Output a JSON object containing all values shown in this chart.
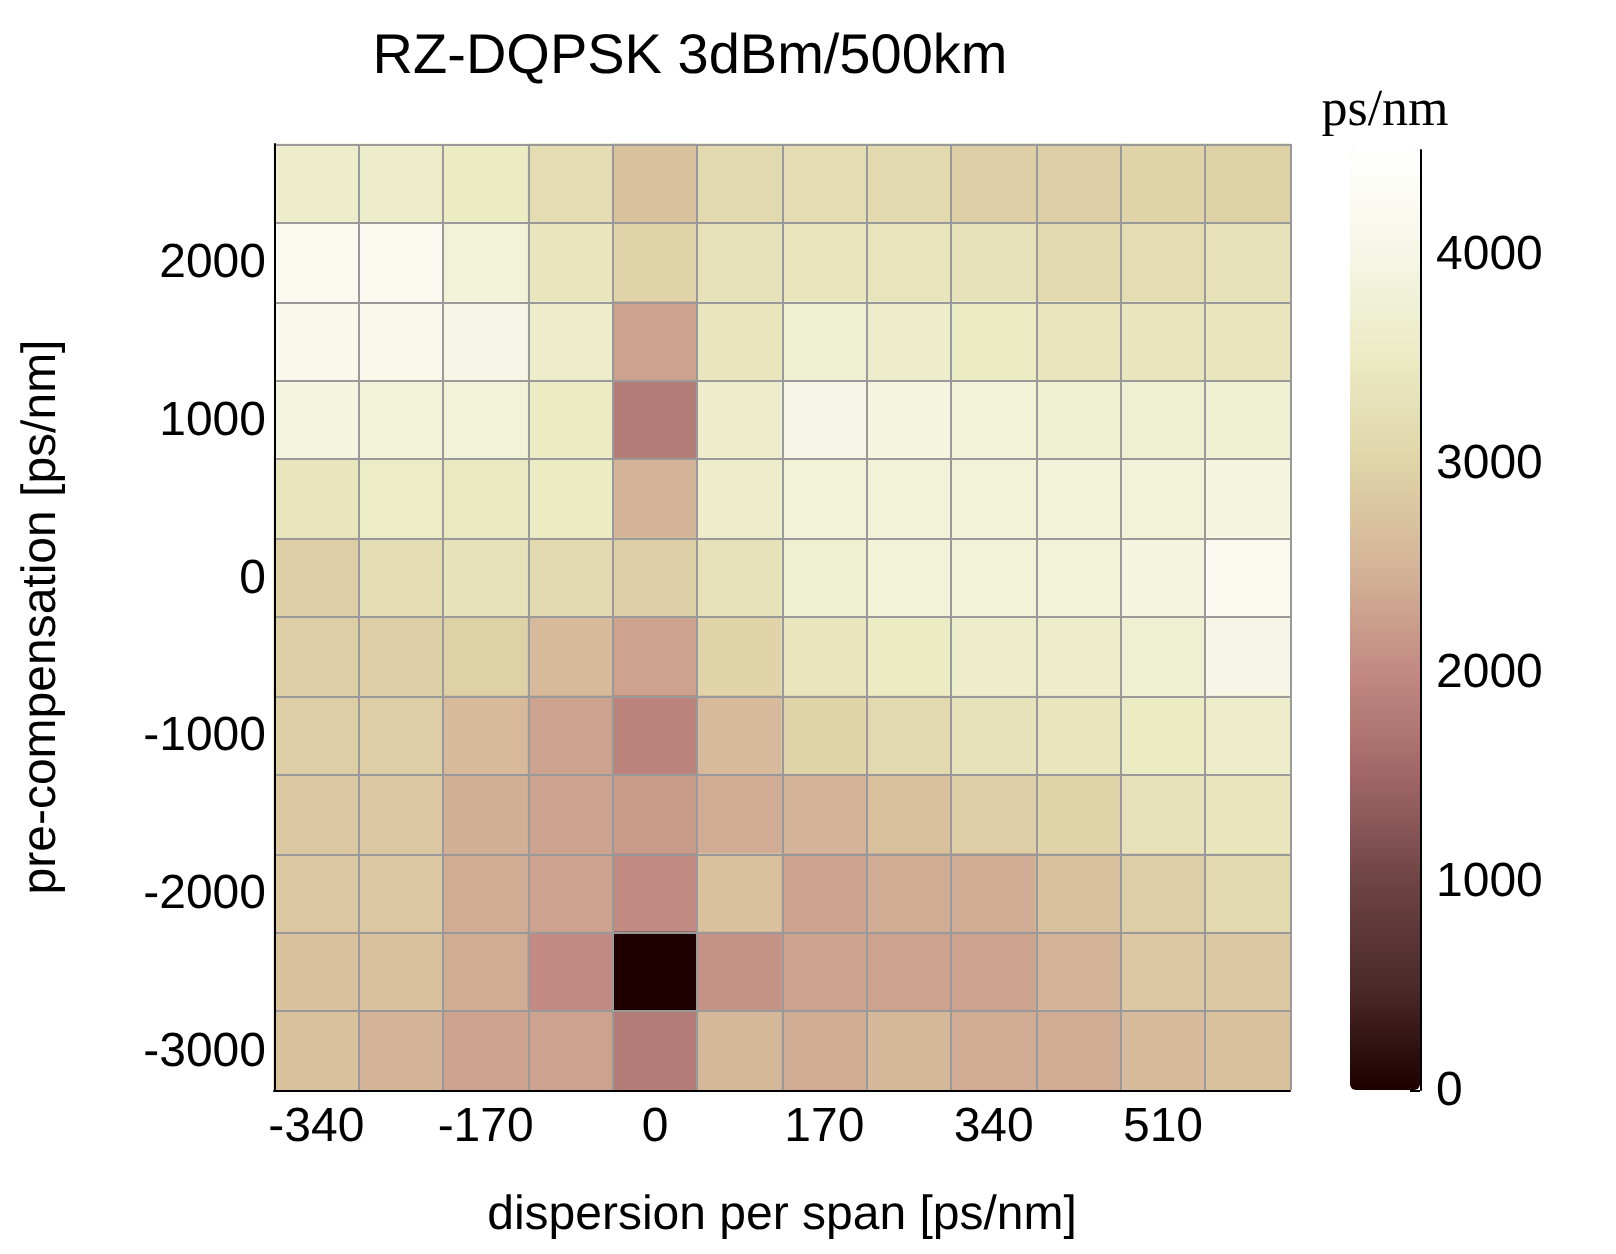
{
  "chart_data": {
    "type": "heatmap",
    "title": "RZ-DQPSK 3dBm/500km",
    "xlabel": "dispersion per span [ps/nm]",
    "ylabel": "pre-compensation [ps/nm]",
    "clabel": "ps/nm",
    "categories": [
      "-340",
      null,
      "-170",
      null,
      "0",
      null,
      "170",
      null,
      "340",
      null,
      "510",
      null
    ],
    "y_categories": [
      null,
      "2000",
      null,
      "1000",
      null,
      "0",
      null,
      "-1000",
      null,
      "-2000",
      null,
      "-3000"
    ],
    "cells": [
      [
        3600,
        3600,
        3500,
        3200,
        2700,
        3100,
        3200,
        3100,
        2900,
        2900,
        3000,
        2950
      ],
      [
        4200,
        4200,
        3800,
        3400,
        3000,
        3300,
        3400,
        3350,
        3300,
        3100,
        3200,
        3300
      ],
      [
        4100,
        4100,
        4000,
        3600,
        2300,
        3400,
        3700,
        3600,
        3500,
        3400,
        3400,
        3400
      ],
      [
        3900,
        3800,
        3800,
        3500,
        1800,
        3600,
        4000,
        3900,
        3800,
        3700,
        3700,
        3700
      ],
      [
        3400,
        3550,
        3450,
        3500,
        2500,
        3600,
        3800,
        3800,
        3800,
        3800,
        3800,
        3900
      ],
      [
        2900,
        3200,
        3300,
        3100,
        2900,
        3300,
        3700,
        3800,
        3800,
        3800,
        3900,
        4200
      ],
      [
        2900,
        2900,
        2950,
        2600,
        2300,
        3000,
        3400,
        3500,
        3600,
        3600,
        3700,
        4000
      ],
      [
        2900,
        2900,
        2600,
        2300,
        1900,
        2600,
        3000,
        3100,
        3300,
        3400,
        3500,
        3600
      ],
      [
        2800,
        2800,
        2450,
        2300,
        2200,
        2400,
        2500,
        2700,
        2900,
        3000,
        3300,
        3400
      ],
      [
        2800,
        2800,
        2400,
        2300,
        2000,
        2700,
        2300,
        2400,
        2400,
        2700,
        2900,
        3100
      ],
      [
        2700,
        2700,
        2400,
        2000,
        0,
        2100,
        2300,
        2300,
        2300,
        2500,
        2800,
        2800
      ],
      [
        2700,
        2500,
        2300,
        2300,
        1800,
        2550,
        2400,
        2550,
        2400,
        2400,
        2600,
        2700
      ]
    ],
    "clim": [
      0,
      4500
    ],
    "cticks": [
      0,
      1000,
      2000,
      3000,
      4000
    ],
    "grid": true
  }
}
